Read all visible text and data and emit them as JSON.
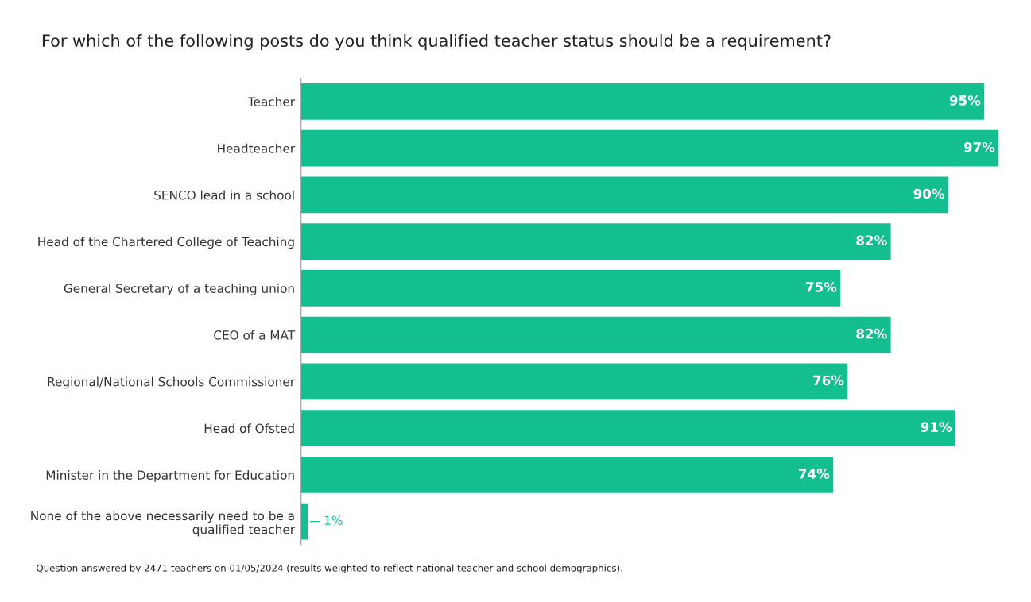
{
  "chart_data": {
    "type": "bar",
    "orientation": "horizontal",
    "title": "For which of the following posts do you think qualified teacher status should be a requirement?",
    "categories": [
      "Teacher",
      "Headteacher",
      "SENCO lead in a school",
      "Head of the Chartered College of Teaching",
      "General Secretary of a teaching union",
      "CEO of a MAT",
      "Regional/National Schools Commissioner",
      "Head of Ofsted",
      "Minister in the Department for Education",
      "None of the above necessarily need to be a\nqualified teacher"
    ],
    "values": [
      95,
      97,
      90,
      82,
      75,
      82,
      76,
      91,
      74,
      1
    ],
    "color": "#14bf8f",
    "value_labels": [
      "95%",
      "97%",
      "90%",
      "82%",
      "75%",
      "82%",
      "76%",
      "91%",
      "74%",
      "1%"
    ],
    "tick_labels": "y",
    "grid": false,
    "legend": false,
    "annotations": [
      "Question answered by 2471 teachers on 01/05/2024 (results weighted to reflect national teacher and school demographics)."
    ]
  }
}
